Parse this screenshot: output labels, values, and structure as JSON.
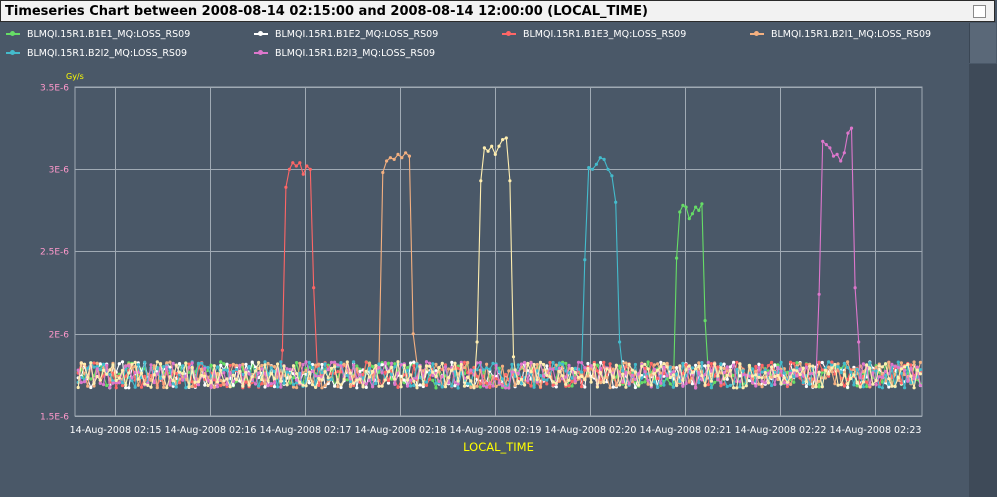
{
  "window": {
    "title": "Timeseries Chart between 2008-08-14 02:15:00 and 2008-08-14 12:00:00 (LOCAL_TIME)"
  },
  "colors": {
    "background": "#4a5868",
    "plot_background": "#4a5868",
    "grid": "#a0aab4",
    "axis_text": "#ffffff",
    "y_tick_text": "#ff99cc",
    "y_unit_text": "#ffff00",
    "x_label_text": "#ffff00"
  },
  "chart_data": {
    "type": "line",
    "title": "",
    "xlabel": "LOCAL_TIME",
    "ylabel": "",
    "y_unit": "Gy/s",
    "ylim": [
      1.5e-06,
      3.5e-06
    ],
    "yticks": [
      1.5e-06,
      2e-06,
      2.5e-06,
      3e-06,
      3.5e-06
    ],
    "ytick_labels": [
      "1.5E-6",
      "2E-6",
      "2.5E-6",
      "3E-6",
      "3.5E-6"
    ],
    "xlim": [
      "2008-08-14 02:14:35",
      "2008-08-14 02:23:30"
    ],
    "xticks": [
      "2008-08-14 02:15:00",
      "2008-08-14 02:16:00",
      "2008-08-14 02:17:00",
      "2008-08-14 02:18:00",
      "2008-08-14 02:19:00",
      "2008-08-14 02:20:00",
      "2008-08-14 02:21:00",
      "2008-08-14 02:22:00",
      "2008-08-14 02:23:00"
    ],
    "xtick_labels": [
      "14-Aug-2008 02:15",
      "14-Aug-2008 02:16",
      "14-Aug-2008 02:17",
      "14-Aug-2008 02:18",
      "14-Aug-2008 02:19",
      "14-Aug-2008 02:20",
      "14-Aug-2008 02:21",
      "14-Aug-2008 02:22",
      "14-Aug-2008 02:23"
    ],
    "grid": true,
    "legend_position": "top",
    "baseline": {
      "mean": 1.75e-06,
      "amplitude": 8e-08
    },
    "series": [
      {
        "name": "BLMQI.15R1.B1E1_MQ:LOSS_RS09",
        "color": "#66dd66",
        "peak": {
          "start": "2008-08-14 02:20:55",
          "end": "2008-08-14 02:21:13",
          "values": [
            2.46e-06,
            2.74e-06,
            2.78e-06,
            2.77e-06,
            2.7e-06,
            2.73e-06,
            2.77e-06,
            2.75e-06,
            2.79e-06,
            2.08e-06
          ]
        }
      },
      {
        "name": "BLMQI.15R1.B1E2_MQ:LOSS_RS09",
        "color": "#ffffff",
        "peak": null
      },
      {
        "name": "BLMQI.15R1.B1E3_MQ:LOSS_RS09",
        "color": "#ff6666",
        "peak": {
          "start": "2008-08-14 02:16:46",
          "end": "2008-08-14 02:17:08",
          "values": [
            1.9e-06,
            2.89e-06,
            3e-06,
            3.04e-06,
            3.02e-06,
            3.04e-06,
            2.97e-06,
            3.02e-06,
            3e-06,
            2.28e-06,
            1.8e-06
          ]
        }
      },
      {
        "name": "BLMQI.15R1.B2I1_MQ:LOSS_RS09",
        "color": "#f4b080",
        "peak": {
          "start": "2008-08-14 02:17:47",
          "end": "2008-08-14 02:18:11",
          "values": [
            1.8e-06,
            2.98e-06,
            3.05e-06,
            3.07e-06,
            3.06e-06,
            3.09e-06,
            3.07e-06,
            3.1e-06,
            3.08e-06,
            2e-06,
            1.82e-06
          ]
        }
      },
      {
        "name": "BLMQI.15R1.B2I2_MQ:LOSS_RS09",
        "color": "#44bbcc",
        "peak": {
          "start": "2008-08-14 02:19:57",
          "end": "2008-08-14 02:20:19",
          "values": [
            2.45e-06,
            3.01e-06,
            3e-06,
            3.03e-06,
            3.07e-06,
            3.06e-06,
            3e-06,
            2.96e-06,
            2.8e-06,
            1.95e-06
          ]
        }
      },
      {
        "name": "BLMQI.15R1.B2I3_MQ:LOSS_RS09",
        "color": "#dd77cc",
        "peak": {
          "start": "2008-08-14 02:22:25",
          "end": "2008-08-14 02:22:50",
          "values": [
            2.24e-06,
            3.17e-06,
            3.15e-06,
            3.13e-06,
            3.08e-06,
            3.09e-06,
            3.05e-06,
            3.1e-06,
            3.22e-06,
            3.25e-06,
            2.28e-06,
            1.95e-06
          ]
        }
      },
      {
        "name": "",
        "color": "#ffeeb0",
        "legend": false,
        "peak": {
          "start": "2008-08-14 02:18:49",
          "end": "2008-08-14 02:19:12",
          "values": [
            1.95e-06,
            2.93e-06,
            3.13e-06,
            3.11e-06,
            3.14e-06,
            3.09e-06,
            3.14e-06,
            3.18e-06,
            3.19e-06,
            2.93e-06,
            1.86e-06
          ]
        }
      }
    ]
  }
}
